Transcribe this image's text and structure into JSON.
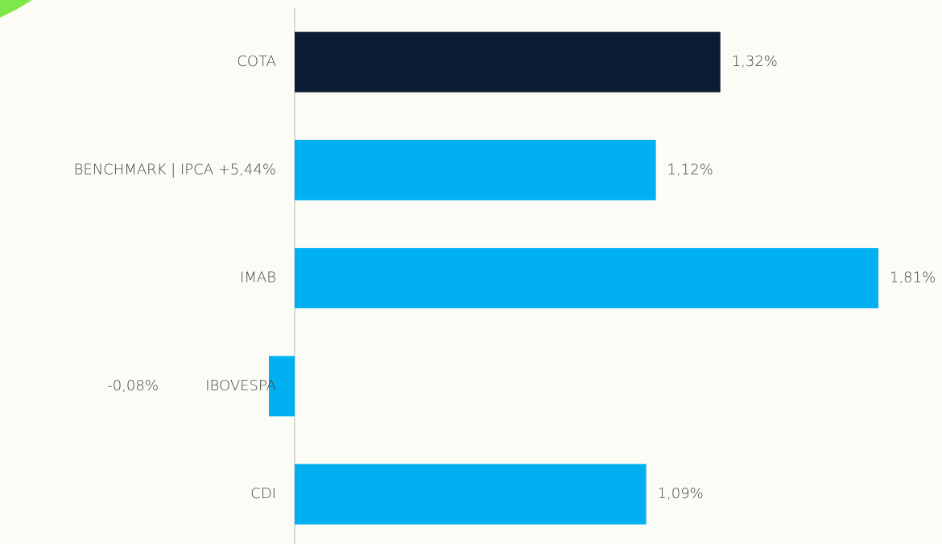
{
  "chart_data": {
    "type": "bar",
    "orientation": "horizontal",
    "categories": [
      "COTA",
      "BENCHMARK | IPCA +5,44%",
      "IMAB",
      "IBOVESPA",
      "CDI"
    ],
    "values": [
      1.32,
      1.12,
      1.81,
      -0.08,
      1.09
    ],
    "value_labels": [
      "1,32%",
      "1,12%",
      "1,81%",
      "-0,08%",
      "1,09%"
    ],
    "colors": [
      "#0d1b33",
      "#00b0f0",
      "#00b0f0",
      "#00b0f0",
      "#00b0f0"
    ]
  }
}
